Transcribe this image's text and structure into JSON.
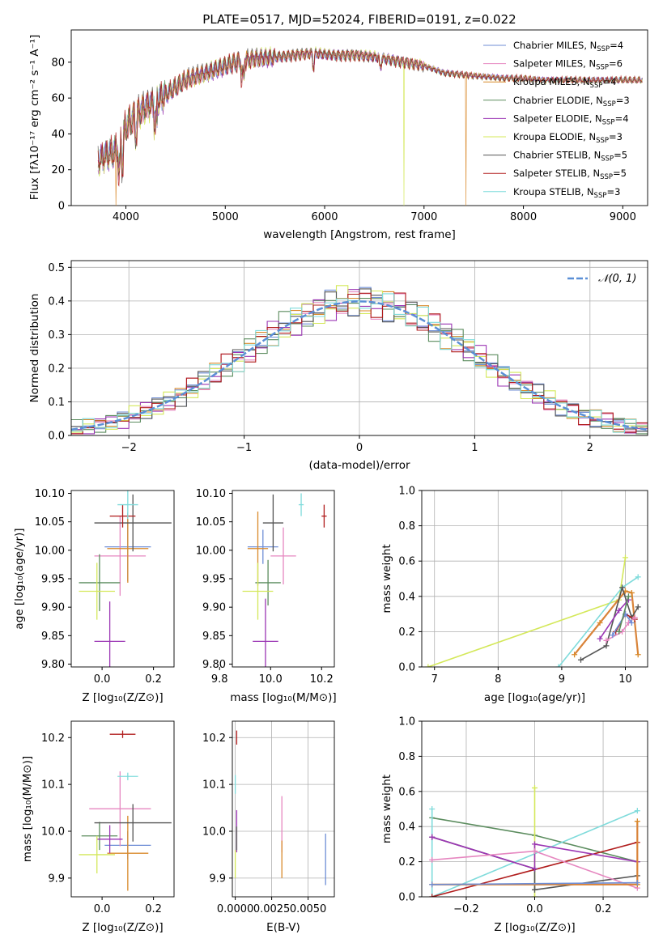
{
  "figure": {
    "title": "PLATE=0517, MJD=52024, FIBERID=0191, z=0.022"
  },
  "colors": {
    "Chabrier MILES": "#6f8ed6",
    "Salpeter MILES": "#e687c0",
    "Kroupa MILES": "#d98a2b",
    "Chabrier ELODIE": "#5b8c5e",
    "Salpeter ELODIE": "#9b36b4",
    "Kroupa ELODIE": "#d4e85a",
    "Chabrier STELIB": "#555555",
    "Salpeter STELIB": "#b01c1c",
    "Kroupa STELIB": "#7fdbdb",
    "gauss": "#5b8fd6",
    "thick_orange": "#d9843a"
  },
  "chart_data": [
    {
      "id": "spectrum",
      "type": "line",
      "title": "PLATE=0517, MJD=52024, FIBERID=0191, z=0.022",
      "xlabel": "wavelength [Angstrom, rest frame]",
      "ylabel": "Flux [fλ10⁻¹⁷ erg cm⁻² s⁻¹ A⁻¹]",
      "xlim": [
        3450,
        9250
      ],
      "ylim": [
        0,
        98
      ],
      "xticks": [
        "4000",
        "5000",
        "6000",
        "7000",
        "8000",
        "9000"
      ],
      "yticks": [
        "0",
        "20",
        "40",
        "60",
        "80"
      ],
      "legend_position": "top-right",
      "legend": [
        "Chabrier MILES, N_SSP=4",
        "Salpeter MILES, N_SSP=6",
        "Kroupa MILES, N_SSP=4",
        "Chabrier ELODIE, N_SSP=3",
        "Salpeter ELODIE, N_SSP=4",
        "Kroupa ELODIE, N_SSP=3",
        "Chabrier STELIB, N_SSP=5",
        "Salpeter STELIB, N_SSP=5",
        "Kroupa STELIB, N_SSP=3"
      ],
      "continuum": {
        "x": [
          3720,
          3800,
          3900,
          3960,
          4000,
          4100,
          4200,
          4300,
          4400,
          4500,
          4600,
          4700,
          4800,
          4900,
          5000,
          5100,
          5200,
          5300,
          5500,
          5700,
          5900,
          6100,
          6300,
          6500,
          6700,
          6900,
          7000,
          7100,
          7200,
          7400,
          7600,
          7800,
          8000,
          8200,
          8400,
          8600,
          8800,
          9000,
          9200
        ],
        "y": [
          25,
          28,
          30,
          36,
          44,
          50,
          55,
          58,
          62,
          66,
          70,
          72,
          74,
          76,
          78,
          80,
          81,
          82,
          83,
          84,
          85,
          84,
          84,
          83,
          81,
          79,
          78,
          76,
          74,
          73,
          72,
          71,
          71,
          70,
          70,
          70,
          70,
          70,
          70
        ]
      },
      "drops": [
        {
          "x": 3900,
          "series": "Kroupa MILES"
        },
        {
          "x": 6800,
          "series": "Kroupa ELODIE"
        },
        {
          "x": 7420,
          "series": "Kroupa MILES"
        }
      ]
    },
    {
      "id": "residuals",
      "type": "step",
      "xlabel": "(data-model)/error",
      "ylabel": "Normed distribution",
      "xlim": [
        -2.5,
        2.5
      ],
      "ylim": [
        0,
        0.52
      ],
      "xticks": [
        "−2",
        "−1",
        "0",
        "1",
        "2"
      ],
      "yticks": [
        "0.0",
        "0.1",
        "0.2",
        "0.3",
        "0.4",
        "0.5"
      ],
      "grid": true,
      "legend": "𝒩(0, 1)",
      "legend_position": "top-right",
      "bin_width": 0.1
    },
    {
      "id": "age_vs_Z",
      "type": "errorbar",
      "xlabel": "Z [log₁₀(Z/Z⊙)]",
      "ylabel": "age  [log₁₀(age/yr)]",
      "xlim": [
        -0.12,
        0.28
      ],
      "ylim": [
        9.795,
        10.105
      ],
      "xticks": [
        "0.0",
        "0.2"
      ],
      "yticks": [
        "9.80",
        "9.85",
        "9.90",
        "9.95",
        "10.00",
        "10.05",
        "10.10"
      ],
      "points": [
        {
          "series": "Chabrier MILES",
          "x": 0.1,
          "xerr": 0.09,
          "y": 10.006,
          "yerr": 0.06
        },
        {
          "series": "Salpeter MILES",
          "x": 0.07,
          "xerr": 0.1,
          "y": 9.99,
          "yerr": 0.07
        },
        {
          "series": "Kroupa MILES",
          "x": 0.1,
          "xerr": 0.08,
          "y": 10.003,
          "yerr": 0.06
        },
        {
          "series": "Chabrier ELODIE",
          "x": -0.01,
          "xerr": 0.08,
          "y": 9.943,
          "yerr": 0.05
        },
        {
          "series": "Salpeter ELODIE",
          "x": 0.03,
          "xerr": 0.06,
          "y": 9.84,
          "yerr": 0.07
        },
        {
          "series": "Kroupa ELODIE",
          "x": -0.02,
          "xerr": 0.07,
          "y": 9.928,
          "yerr": 0.05
        },
        {
          "series": "Chabrier STELIB",
          "x": 0.12,
          "xerr": 0.15,
          "y": 10.048,
          "yerr": 0.05
        },
        {
          "series": "Salpeter STELIB",
          "x": 0.08,
          "xerr": 0.05,
          "y": 10.06,
          "yerr": 0.02
        },
        {
          "series": "Kroupa STELIB",
          "x": 0.1,
          "xerr": 0.04,
          "y": 10.08,
          "yerr": 0.025
        }
      ]
    },
    {
      "id": "age_vs_mass",
      "type": "errorbar",
      "xlabel": "mass [log₁₀(M/M⊙)]",
      "ylabel": "",
      "xlim": [
        9.85,
        10.25
      ],
      "ylim": [
        9.795,
        10.105
      ],
      "xticks": [
        "9.8",
        "10.0",
        "10.2"
      ],
      "yticks": [
        "9.80",
        "9.85",
        "9.90",
        "9.95",
        "10.00",
        "10.05",
        "10.10"
      ],
      "points": [
        {
          "series": "Chabrier MILES",
          "x": 9.97,
          "xerr": 0.06,
          "y": 10.006,
          "yerr": 0.03
        },
        {
          "series": "Salpeter MILES",
          "x": 10.05,
          "xerr": 0.05,
          "y": 9.99,
          "yerr": 0.05
        },
        {
          "series": "Kroupa MILES",
          "x": 9.95,
          "xerr": 0.04,
          "y": 10.003,
          "yerr": 0.065
        },
        {
          "series": "Chabrier ELODIE",
          "x": 9.99,
          "xerr": 0.05,
          "y": 9.943,
          "yerr": 0.04
        },
        {
          "series": "Salpeter ELODIE",
          "x": 9.98,
          "xerr": 0.05,
          "y": 9.84,
          "yerr": 0.075
        },
        {
          "series": "Kroupa ELODIE",
          "x": 9.95,
          "xerr": 0.06,
          "y": 9.928,
          "yerr": 0.05
        },
        {
          "series": "Chabrier STELIB",
          "x": 10.01,
          "xerr": 0.04,
          "y": 10.048,
          "yerr": 0.05
        },
        {
          "series": "Salpeter STELIB",
          "x": 10.21,
          "xerr": 0.01,
          "y": 10.06,
          "yerr": 0.02
        },
        {
          "series": "Kroupa STELIB",
          "x": 10.12,
          "xerr": 0.01,
          "y": 10.08,
          "yerr": 0.02
        }
      ]
    },
    {
      "id": "weight_vs_age",
      "type": "line",
      "xlabel": "age  [log₁₀(age/yr)]",
      "ylabel": "mass weight",
      "xlim": [
        6.8,
        10.35
      ],
      "ylim": [
        0,
        1.0
      ],
      "xticks": [
        "7",
        "8",
        "9",
        "10"
      ],
      "yticks": [
        "0.0",
        "0.2",
        "0.4",
        "0.6",
        "0.8",
        "1.0"
      ],
      "grid": true,
      "series": [
        {
          "name": "Kroupa ELODIE",
          "x": [
            6.9,
            9.9,
            10.0
          ],
          "y": [
            0.0,
            0.38,
            0.62
          ]
        },
        {
          "name": "Kroupa STELIB",
          "x": [
            8.95,
            9.95,
            10.2
          ],
          "y": [
            0.0,
            0.45,
            0.51
          ]
        },
        {
          "name": "Kroupa MILES",
          "x": [
            9.2,
            9.6,
            10.0,
            10.1,
            10.2
          ],
          "y": [
            0.07,
            0.25,
            0.43,
            0.42,
            0.07
          ]
        },
        {
          "name": "Chabrier STELIB",
          "x": [
            9.3,
            9.7,
            9.95,
            10.1,
            10.2
          ],
          "y": [
            0.04,
            0.12,
            0.45,
            0.28,
            0.34
          ]
        },
        {
          "name": "Salpeter STELIB",
          "x": [
            9.85,
            10.0,
            10.15
          ],
          "y": [
            0.2,
            0.3,
            0.27
          ]
        },
        {
          "name": "Salpeter MILES",
          "x": [
            9.7,
            9.95,
            10.05,
            10.15
          ],
          "y": [
            0.15,
            0.2,
            0.25,
            0.28
          ]
        },
        {
          "name": "Salpeter ELODIE",
          "x": [
            9.6,
            9.9,
            10.05
          ],
          "y": [
            0.16,
            0.32,
            0.38
          ]
        },
        {
          "name": "Chabrier MILES",
          "x": [
            9.8,
            10.0,
            10.1
          ],
          "y": [
            0.18,
            0.3,
            0.25
          ]
        },
        {
          "name": "Chabrier ELODIE",
          "x": [
            9.9,
            10.05
          ],
          "y": [
            0.2,
            0.4
          ]
        }
      ]
    },
    {
      "id": "mass_vs_Z",
      "type": "errorbar",
      "xlabel": "Z [log₁₀(Z/Z⊙)]",
      "ylabel": "mass [log₁₀(M/M⊙)]",
      "xlim": [
        -0.12,
        0.28
      ],
      "ylim": [
        9.86,
        10.235
      ],
      "xticks": [
        "0.0",
        "0.2"
      ],
      "yticks": [
        "9.9",
        "10.0",
        "10.1",
        "10.2"
      ],
      "points": [
        {
          "series": "Chabrier MILES",
          "x": 0.1,
          "xerr": 0.09,
          "y": 9.97,
          "yerr": 0.03
        },
        {
          "series": "Salpeter MILES",
          "x": 0.07,
          "xerr": 0.12,
          "y": 10.048,
          "yerr": 0.08
        },
        {
          "series": "Kroupa MILES",
          "x": 0.1,
          "xerr": 0.08,
          "y": 9.953,
          "yerr": 0.08
        },
        {
          "series": "Chabrier ELODIE",
          "x": -0.01,
          "xerr": 0.07,
          "y": 9.99,
          "yerr": 0.03
        },
        {
          "series": "Salpeter ELODIE",
          "x": 0.03,
          "xerr": 0.05,
          "y": 9.983,
          "yerr": 0.03
        },
        {
          "series": "Kroupa ELODIE",
          "x": -0.02,
          "xerr": 0.07,
          "y": 9.95,
          "yerr": 0.04
        },
        {
          "series": "Chabrier STELIB",
          "x": 0.12,
          "xerr": 0.15,
          "y": 10.018,
          "yerr": 0.04
        },
        {
          "series": "Salpeter STELIB",
          "x": 0.08,
          "xerr": 0.05,
          "y": 10.207,
          "yerr": 0.008
        },
        {
          "series": "Kroupa STELIB",
          "x": 0.1,
          "xerr": 0.04,
          "y": 10.117,
          "yerr": 0.008
        }
      ]
    },
    {
      "id": "mass_vs_ebv",
      "type": "errorbar",
      "xlabel": "E(B-V)",
      "ylabel": "",
      "xlim": [
        -0.0002,
        0.0068
      ],
      "ylim": [
        9.86,
        10.235
      ],
      "xticks": [
        "0.0000",
        "0.0025",
        "0.0050"
      ],
      "yticks": [
        "9.9",
        "10.0",
        "10.1",
        "10.2"
      ],
      "points": [
        {
          "series": "Chabrier MILES",
          "x": 0.0062,
          "xerr": 0,
          "y": 9.94,
          "yerr": 0.055
        },
        {
          "series": "Salpeter MILES",
          "x": 0.0032,
          "xerr": 0,
          "y": 10.015,
          "yerr": 0.06
        },
        {
          "series": "Kroupa MILES",
          "x": 0.0032,
          "xerr": 0,
          "y": 9.94,
          "yerr": 0.04
        },
        {
          "series": "Salpeter ELODIE",
          "x": 0.0001,
          "xerr": 0,
          "y": 10.0,
          "yerr": 0.045
        },
        {
          "series": "Kroupa ELODIE",
          "x": 0.0,
          "xerr": 0,
          "y": 9.93,
          "yerr": 0.03
        },
        {
          "series": "Chabrier STELIB",
          "x": 0.0001,
          "xerr": 0,
          "y": 9.985,
          "yerr": 0.025
        },
        {
          "series": "Salpeter STELIB",
          "x": 0.0001,
          "xerr": 0,
          "y": 10.2,
          "yerr": 0.015
        },
        {
          "series": "Kroupa STELIB",
          "x": 0.0,
          "xerr": 0,
          "y": 10.1,
          "yerr": 0.02
        }
      ]
    },
    {
      "id": "weight_vs_Z",
      "type": "line",
      "xlabel": "Z [log₁₀(Z/Z⊙)]",
      "ylabel": "mass weight",
      "xlim": [
        -0.33,
        0.33
      ],
      "ylim": [
        0,
        1.0
      ],
      "xticks": [
        "−0.2",
        "0.0",
        "0.2"
      ],
      "yticks": [
        "0.0",
        "0.2",
        "0.4",
        "0.6",
        "0.8",
        "1.0"
      ],
      "grid": true,
      "series": [
        {
          "name": "Chabrier ELODIE",
          "x": [
            -0.3,
            0.0,
            0.3
          ],
          "y": [
            0.45,
            0.35,
            0.2
          ]
        },
        {
          "name": "Kroupa STELIB",
          "x": [
            -0.3,
            -0.3,
            0.3
          ],
          "y": [
            0.5,
            0.0,
            0.49
          ]
        },
        {
          "name": "Kroupa ELODIE",
          "x": [
            0.0,
            0.0
          ],
          "y": [
            0.0,
            0.62
          ]
        },
        {
          "name": "Salpeter STELIB",
          "x": [
            -0.3,
            0.3
          ],
          "y": [
            0.0,
            0.31
          ]
        },
        {
          "name": "Chabrier STELIB",
          "x": [
            -0.3,
            0.0,
            0.0,
            0.3
          ],
          "y": [
            0.34,
            0.16,
            0.04,
            0.12
          ]
        },
        {
          "name": "Salpeter ELODIE",
          "x": [
            -0.3,
            0.0,
            0.0,
            0.3
          ],
          "y": [
            0.34,
            0.16,
            0.3,
            0.2
          ]
        },
        {
          "name": "Salpeter MILES",
          "x": [
            -0.3,
            0.0,
            0.3
          ],
          "y": [
            0.21,
            0.26,
            0.05
          ]
        },
        {
          "name": "Kroupa MILES",
          "x": [
            -0.3,
            0.3,
            0.3
          ],
          "y": [
            0.07,
            0.07,
            0.43
          ]
        },
        {
          "name": "Chabrier MILES",
          "x": [
            -0.3,
            0.3
          ],
          "y": [
            0.07,
            0.08
          ]
        }
      ]
    }
  ]
}
